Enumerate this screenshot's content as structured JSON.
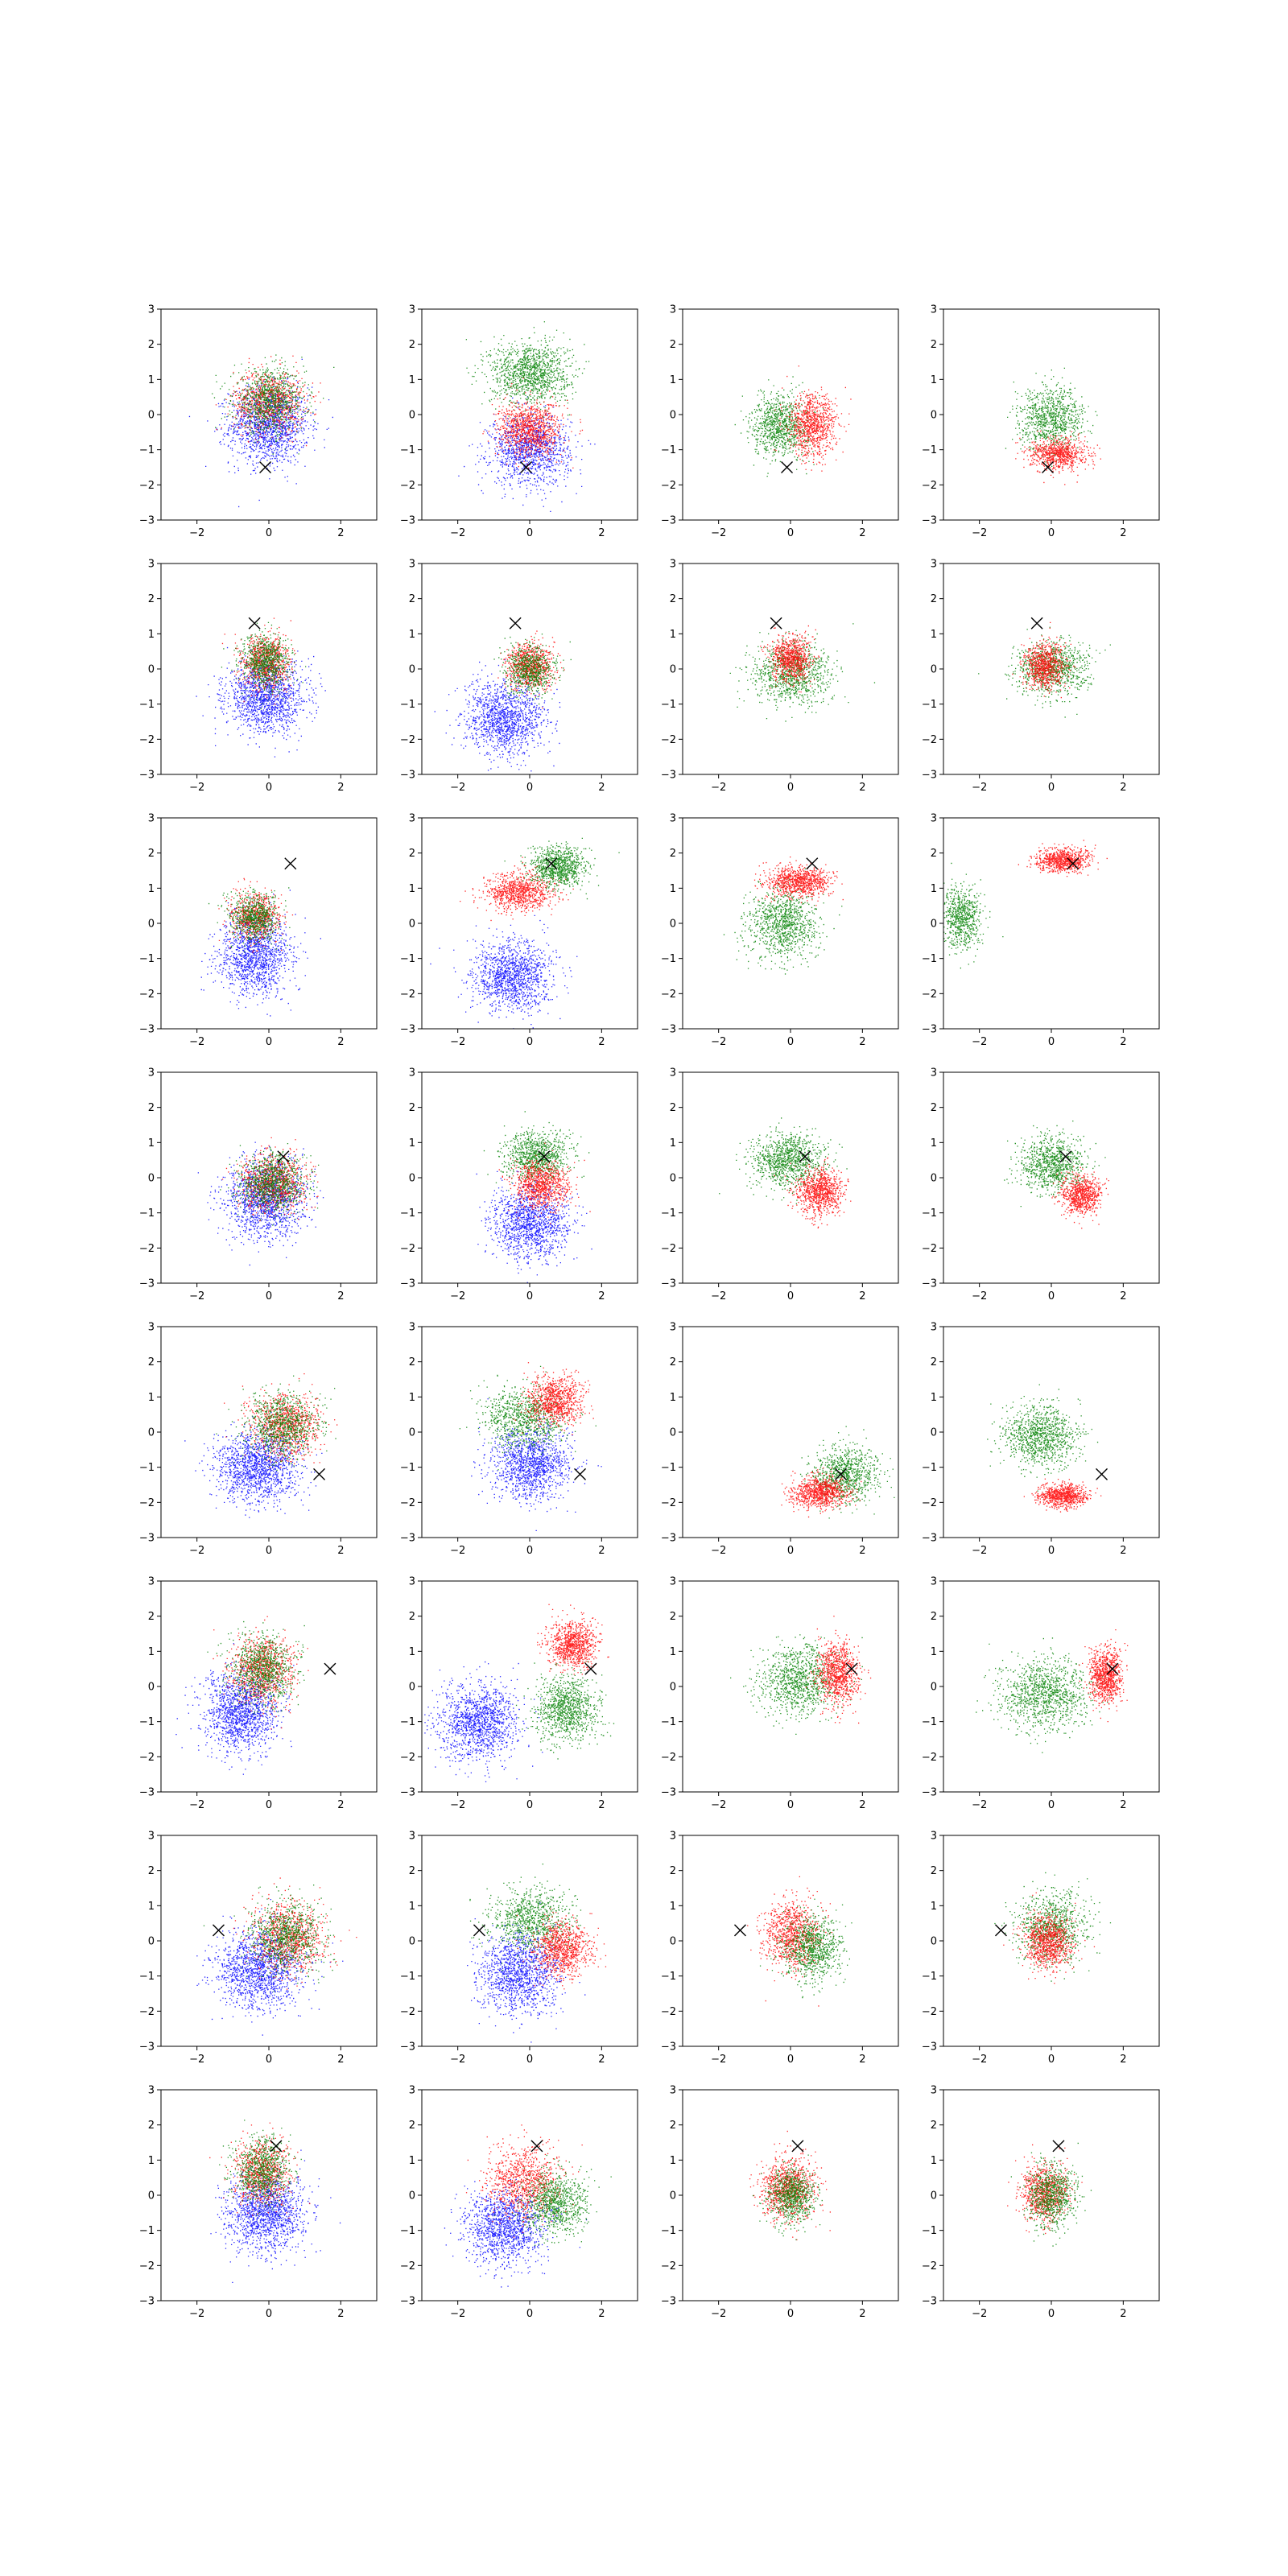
{
  "figure": {
    "rows": 8,
    "cols": 4,
    "colors": {
      "blue": "#0000ff",
      "green": "#008000",
      "red": "#ff0000",
      "marker": "#000000",
      "axes": "#000000"
    }
  },
  "chart_data": {
    "type": "scatter",
    "xlim": [
      -3,
      3
    ],
    "ylim": [
      -3,
      3
    ],
    "x_ticks": [
      -2,
      0,
      2
    ],
    "y_ticks": [
      -3,
      -2,
      -1,
      0,
      1,
      2,
      3
    ],
    "x_tick_labels": [
      "−2",
      "0",
      "2"
    ],
    "y_tick_labels": [
      "−3",
      "−2",
      "−1",
      "0",
      "1",
      "2",
      "3"
    ],
    "grid": false,
    "markers": [
      {
        "row": 1,
        "x": -0.1,
        "y": -1.5
      },
      {
        "row": 2,
        "x": -0.4,
        "y": 1.3
      },
      {
        "row": 3,
        "x": 0.6,
        "y": 1.7
      },
      {
        "row": 4,
        "x": 0.4,
        "y": 0.6
      },
      {
        "row": 5,
        "x": 1.4,
        "y": -1.2
      },
      {
        "row": 6,
        "x": 1.7,
        "y": 0.5
      },
      {
        "row": 7,
        "x": -1.4,
        "y": 0.3
      },
      {
        "row": 8,
        "x": 0.2,
        "y": 1.4
      }
    ],
    "panels": [
      {
        "row": 1,
        "col": 1,
        "clusters": [
          {
            "color": "blue",
            "cx": 0.0,
            "cy": -0.3,
            "sx": 1.0,
            "sy": 1.0,
            "n": 1400
          },
          {
            "color": "red",
            "cx": 0.0,
            "cy": 0.4,
            "sx": 0.9,
            "sy": 0.8,
            "n": 900
          },
          {
            "color": "green",
            "cx": 0.0,
            "cy": 0.4,
            "sx": 0.9,
            "sy": 0.8,
            "n": 900
          }
        ]
      },
      {
        "row": 1,
        "col": 2,
        "clusters": [
          {
            "color": "blue",
            "cx": 0.0,
            "cy": -1.0,
            "sx": 1.0,
            "sy": 0.9,
            "n": 1200
          },
          {
            "color": "green",
            "cx": 0.0,
            "cy": 1.2,
            "sx": 1.0,
            "sy": 0.8,
            "n": 1200
          },
          {
            "color": "red",
            "cx": 0.0,
            "cy": -0.4,
            "sx": 0.8,
            "sy": 0.7,
            "n": 1000
          }
        ]
      },
      {
        "row": 1,
        "col": 3,
        "clusters": [
          {
            "color": "green",
            "cx": -0.3,
            "cy": -0.3,
            "sx": 0.7,
            "sy": 0.8,
            "n": 900
          },
          {
            "color": "red",
            "cx": 0.6,
            "cy": -0.3,
            "sx": 0.6,
            "sy": 0.8,
            "n": 900
          }
        ]
      },
      {
        "row": 1,
        "col": 4,
        "clusters": [
          {
            "color": "green",
            "cx": 0.0,
            "cy": -0.1,
            "sx": 0.8,
            "sy": 0.8,
            "n": 900
          },
          {
            "color": "red",
            "cx": 0.2,
            "cy": -1.1,
            "sx": 0.7,
            "sy": 0.4,
            "n": 800
          }
        ]
      },
      {
        "row": 2,
        "col": 1,
        "clusters": [
          {
            "color": "blue",
            "cx": -0.1,
            "cy": -0.8,
            "sx": 1.0,
            "sy": 0.9,
            "n": 1400
          },
          {
            "color": "red",
            "cx": -0.1,
            "cy": 0.2,
            "sx": 0.6,
            "sy": 0.7,
            "n": 800
          },
          {
            "color": "green",
            "cx": -0.1,
            "cy": 0.2,
            "sx": 0.6,
            "sy": 0.7,
            "n": 800
          }
        ]
      },
      {
        "row": 2,
        "col": 2,
        "clusters": [
          {
            "color": "blue",
            "cx": -0.7,
            "cy": -1.4,
            "sx": 1.0,
            "sy": 0.9,
            "n": 1300
          },
          {
            "color": "red",
            "cx": 0.0,
            "cy": 0.1,
            "sx": 0.6,
            "sy": 0.6,
            "n": 800
          },
          {
            "color": "green",
            "cx": 0.0,
            "cy": 0.0,
            "sx": 0.6,
            "sy": 0.6,
            "n": 700
          }
        ]
      },
      {
        "row": 2,
        "col": 3,
        "clusters": [
          {
            "color": "green",
            "cx": 0.0,
            "cy": -0.1,
            "sx": 1.0,
            "sy": 0.8,
            "n": 1000
          },
          {
            "color": "red",
            "cx": 0.0,
            "cy": 0.3,
            "sx": 0.5,
            "sy": 0.6,
            "n": 800
          }
        ]
      },
      {
        "row": 2,
        "col": 4,
        "clusters": [
          {
            "color": "green",
            "cx": 0.0,
            "cy": 0.0,
            "sx": 0.9,
            "sy": 0.7,
            "n": 900
          },
          {
            "color": "red",
            "cx": -0.2,
            "cy": 0.1,
            "sx": 0.5,
            "sy": 0.6,
            "n": 800
          }
        ]
      },
      {
        "row": 3,
        "col": 1,
        "clusters": [
          {
            "color": "blue",
            "cx": -0.4,
            "cy": -0.9,
            "sx": 0.9,
            "sy": 1.0,
            "n": 1300
          },
          {
            "color": "red",
            "cx": -0.4,
            "cy": 0.2,
            "sx": 0.6,
            "sy": 0.6,
            "n": 700
          },
          {
            "color": "green",
            "cx": -0.4,
            "cy": 0.2,
            "sx": 0.6,
            "sy": 0.6,
            "n": 700
          }
        ]
      },
      {
        "row": 3,
        "col": 2,
        "clusters": [
          {
            "color": "blue",
            "cx": -0.5,
            "cy": -1.5,
            "sx": 1.0,
            "sy": 0.9,
            "n": 1300
          },
          {
            "color": "red",
            "cx": -0.3,
            "cy": 0.9,
            "sx": 0.8,
            "sy": 0.5,
            "n": 900
          },
          {
            "color": "green",
            "cx": 0.8,
            "cy": 1.6,
            "sx": 0.7,
            "sy": 0.5,
            "n": 900
          }
        ]
      },
      {
        "row": 3,
        "col": 3,
        "clusters": [
          {
            "color": "green",
            "cx": -0.2,
            "cy": 0.0,
            "sx": 0.9,
            "sy": 0.9,
            "n": 1000
          },
          {
            "color": "red",
            "cx": 0.2,
            "cy": 1.2,
            "sx": 0.8,
            "sy": 0.4,
            "n": 900
          }
        ]
      },
      {
        "row": 3,
        "col": 4,
        "clusters": [
          {
            "color": "green",
            "cx": -2.5,
            "cy": 0.2,
            "sx": 0.5,
            "sy": 0.8,
            "n": 700
          },
          {
            "color": "red",
            "cx": 0.3,
            "cy": 1.8,
            "sx": 0.7,
            "sy": 0.3,
            "n": 800
          }
        ]
      },
      {
        "row": 4,
        "col": 1,
        "clusters": [
          {
            "color": "blue",
            "cx": -0.1,
            "cy": -0.6,
            "sx": 1.0,
            "sy": 1.0,
            "n": 1400
          },
          {
            "color": "red",
            "cx": 0.1,
            "cy": -0.1,
            "sx": 0.8,
            "sy": 0.7,
            "n": 900
          },
          {
            "color": "green",
            "cx": 0.1,
            "cy": -0.1,
            "sx": 0.8,
            "sy": 0.7,
            "n": 900
          }
        ]
      },
      {
        "row": 4,
        "col": 2,
        "clusters": [
          {
            "color": "blue",
            "cx": 0.0,
            "cy": -1.3,
            "sx": 1.0,
            "sy": 0.9,
            "n": 1300
          },
          {
            "color": "green",
            "cx": 0.2,
            "cy": 0.6,
            "sx": 0.8,
            "sy": 0.6,
            "n": 900
          },
          {
            "color": "red",
            "cx": 0.3,
            "cy": -0.2,
            "sx": 0.7,
            "sy": 0.6,
            "n": 900
          }
        ]
      },
      {
        "row": 4,
        "col": 3,
        "clusters": [
          {
            "color": "green",
            "cx": -0.1,
            "cy": 0.5,
            "sx": 0.9,
            "sy": 0.7,
            "n": 1000
          },
          {
            "color": "red",
            "cx": 0.8,
            "cy": -0.4,
            "sx": 0.6,
            "sy": 0.6,
            "n": 900
          }
        ]
      },
      {
        "row": 4,
        "col": 4,
        "clusters": [
          {
            "color": "green",
            "cx": 0.0,
            "cy": 0.4,
            "sx": 0.8,
            "sy": 0.7,
            "n": 900
          },
          {
            "color": "red",
            "cx": 0.8,
            "cy": -0.5,
            "sx": 0.5,
            "sy": 0.5,
            "n": 800
          }
        ]
      },
      {
        "row": 5,
        "col": 1,
        "clusters": [
          {
            "color": "blue",
            "cx": -0.3,
            "cy": -1.0,
            "sx": 1.0,
            "sy": 0.9,
            "n": 1400
          },
          {
            "color": "red",
            "cx": 0.4,
            "cy": 0.2,
            "sx": 0.9,
            "sy": 0.8,
            "n": 900
          },
          {
            "color": "green",
            "cx": 0.4,
            "cy": 0.2,
            "sx": 0.9,
            "sy": 0.8,
            "n": 900
          }
        ]
      },
      {
        "row": 5,
        "col": 2,
        "clusters": [
          {
            "color": "blue",
            "cx": 0.0,
            "cy": -0.9,
            "sx": 1.0,
            "sy": 0.9,
            "n": 1300
          },
          {
            "color": "green",
            "cx": -0.2,
            "cy": 0.4,
            "sx": 1.0,
            "sy": 0.8,
            "n": 900
          },
          {
            "color": "red",
            "cx": 0.7,
            "cy": 0.9,
            "sx": 0.7,
            "sy": 0.6,
            "n": 900
          }
        ]
      },
      {
        "row": 5,
        "col": 3,
        "clusters": [
          {
            "color": "green",
            "cx": 1.5,
            "cy": -1.2,
            "sx": 0.8,
            "sy": 0.7,
            "n": 900
          },
          {
            "color": "red",
            "cx": 0.8,
            "cy": -1.7,
            "sx": 0.7,
            "sy": 0.4,
            "n": 900
          }
        ]
      },
      {
        "row": 5,
        "col": 4,
        "clusters": [
          {
            "color": "green",
            "cx": -0.3,
            "cy": -0.1,
            "sx": 0.9,
            "sy": 0.8,
            "n": 1000
          },
          {
            "color": "red",
            "cx": 0.3,
            "cy": -1.8,
            "sx": 0.6,
            "sy": 0.3,
            "n": 800
          }
        ]
      },
      {
        "row": 6,
        "col": 1,
        "clusters": [
          {
            "color": "blue",
            "cx": -0.8,
            "cy": -0.7,
            "sx": 0.9,
            "sy": 1.0,
            "n": 1400
          },
          {
            "color": "red",
            "cx": -0.2,
            "cy": 0.5,
            "sx": 0.8,
            "sy": 0.9,
            "n": 900
          },
          {
            "color": "green",
            "cx": -0.2,
            "cy": 0.5,
            "sx": 0.8,
            "sy": 0.9,
            "n": 900
          }
        ]
      },
      {
        "row": 6,
        "col": 2,
        "clusters": [
          {
            "color": "blue",
            "cx": -1.4,
            "cy": -1.0,
            "sx": 1.0,
            "sy": 1.0,
            "n": 1300
          },
          {
            "color": "green",
            "cx": 1.0,
            "cy": -0.6,
            "sx": 0.8,
            "sy": 0.9,
            "n": 1000
          },
          {
            "color": "red",
            "cx": 1.2,
            "cy": 1.2,
            "sx": 0.6,
            "sy": 0.6,
            "n": 900
          }
        ]
      },
      {
        "row": 6,
        "col": 3,
        "clusters": [
          {
            "color": "green",
            "cx": 0.2,
            "cy": 0.2,
            "sx": 1.0,
            "sy": 0.9,
            "n": 1000
          },
          {
            "color": "red",
            "cx": 1.3,
            "cy": 0.4,
            "sx": 0.5,
            "sy": 0.8,
            "n": 900
          }
        ]
      },
      {
        "row": 6,
        "col": 4,
        "clusters": [
          {
            "color": "green",
            "cx": -0.2,
            "cy": -0.2,
            "sx": 1.1,
            "sy": 0.9,
            "n": 1100
          },
          {
            "color": "red",
            "cx": 1.5,
            "cy": 0.3,
            "sx": 0.4,
            "sy": 0.7,
            "n": 900
          }
        ]
      },
      {
        "row": 7,
        "col": 1,
        "clusters": [
          {
            "color": "blue",
            "cx": -0.3,
            "cy": -0.8,
            "sx": 1.1,
            "sy": 1.0,
            "n": 1400
          },
          {
            "color": "red",
            "cx": 0.5,
            "cy": 0.1,
            "sx": 0.9,
            "sy": 0.9,
            "n": 900
          },
          {
            "color": "green",
            "cx": 0.5,
            "cy": 0.1,
            "sx": 0.9,
            "sy": 0.9,
            "n": 900
          }
        ]
      },
      {
        "row": 7,
        "col": 2,
        "clusters": [
          {
            "color": "blue",
            "cx": -0.3,
            "cy": -0.9,
            "sx": 1.0,
            "sy": 1.0,
            "n": 1300
          },
          {
            "color": "green",
            "cx": 0.0,
            "cy": 0.6,
            "sx": 1.0,
            "sy": 0.8,
            "n": 900
          },
          {
            "color": "red",
            "cx": 0.9,
            "cy": -0.2,
            "sx": 0.7,
            "sy": 0.7,
            "n": 900
          }
        ]
      },
      {
        "row": 7,
        "col": 3,
        "clusters": [
          {
            "color": "red",
            "cx": 0.0,
            "cy": 0.2,
            "sx": 0.7,
            "sy": 0.9,
            "n": 900
          },
          {
            "color": "green",
            "cx": 0.6,
            "cy": -0.2,
            "sx": 0.7,
            "sy": 0.8,
            "n": 900
          }
        ]
      },
      {
        "row": 7,
        "col": 4,
        "clusters": [
          {
            "color": "green",
            "cx": 0.0,
            "cy": 0.4,
            "sx": 0.9,
            "sy": 0.9,
            "n": 900
          },
          {
            "color": "red",
            "cx": -0.1,
            "cy": 0.0,
            "sx": 0.6,
            "sy": 0.7,
            "n": 900
          }
        ]
      },
      {
        "row": 8,
        "col": 1,
        "clusters": [
          {
            "color": "blue",
            "cx": -0.1,
            "cy": -0.5,
            "sx": 1.0,
            "sy": 1.0,
            "n": 1400
          },
          {
            "color": "red",
            "cx": -0.2,
            "cy": 0.7,
            "sx": 0.7,
            "sy": 0.8,
            "n": 800
          },
          {
            "color": "green",
            "cx": -0.2,
            "cy": 0.7,
            "sx": 0.7,
            "sy": 0.8,
            "n": 800
          }
        ]
      },
      {
        "row": 8,
        "col": 2,
        "clusters": [
          {
            "color": "blue",
            "cx": -0.7,
            "cy": -0.9,
            "sx": 1.0,
            "sy": 1.0,
            "n": 1300
          },
          {
            "color": "red",
            "cx": -0.2,
            "cy": 0.4,
            "sx": 0.9,
            "sy": 0.9,
            "n": 900
          },
          {
            "color": "green",
            "cx": 0.7,
            "cy": -0.2,
            "sx": 0.8,
            "sy": 0.8,
            "n": 900
          }
        ]
      },
      {
        "row": 8,
        "col": 3,
        "clusters": [
          {
            "color": "red",
            "cx": -0.1,
            "cy": 0.2,
            "sx": 0.7,
            "sy": 0.8,
            "n": 900
          },
          {
            "color": "green",
            "cx": 0.0,
            "cy": 0.0,
            "sx": 0.6,
            "sy": 0.7,
            "n": 800
          }
        ]
      },
      {
        "row": 8,
        "col": 4,
        "clusters": [
          {
            "color": "red",
            "cx": -0.2,
            "cy": 0.1,
            "sx": 0.6,
            "sy": 0.7,
            "n": 800
          },
          {
            "color": "green",
            "cx": 0.0,
            "cy": 0.0,
            "sx": 0.6,
            "sy": 0.8,
            "n": 800
          }
        ]
      }
    ]
  }
}
